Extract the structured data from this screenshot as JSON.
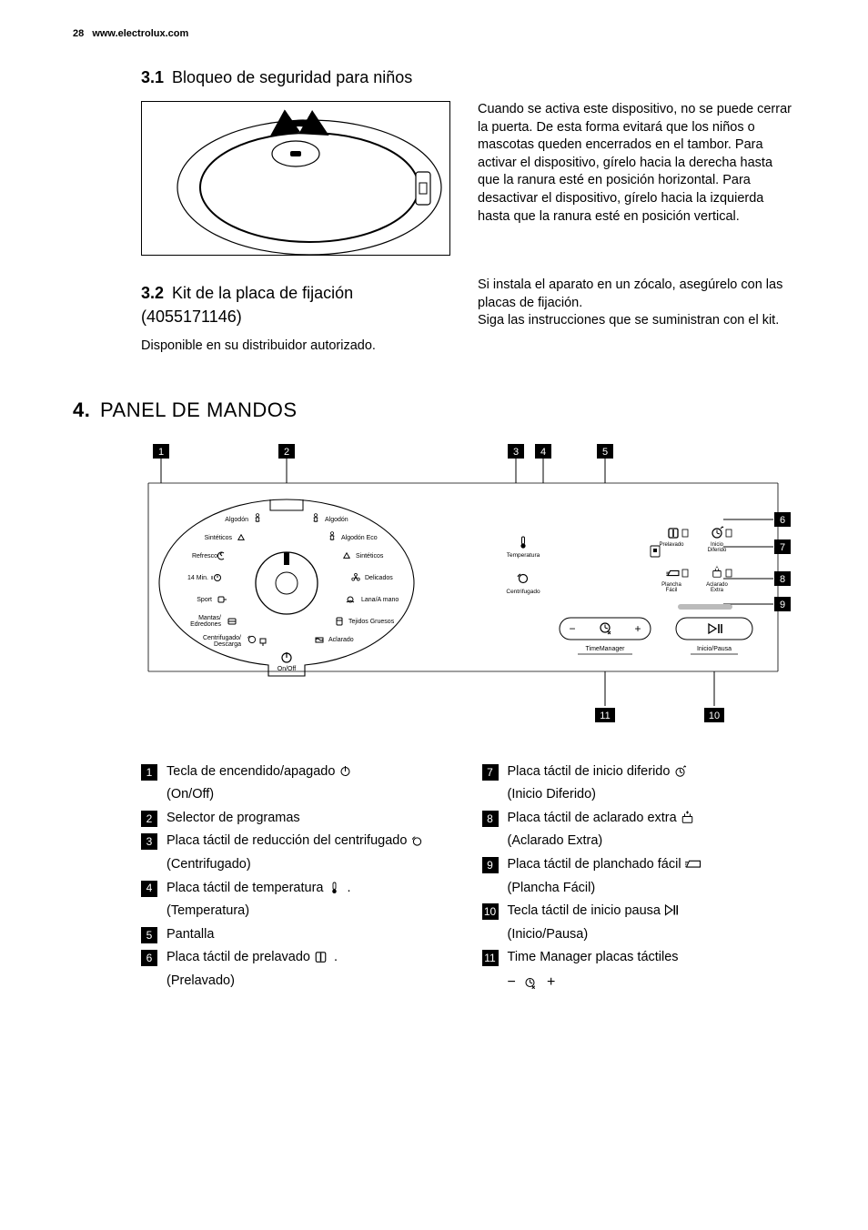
{
  "header": {
    "page_number": "28",
    "url": "www.electrolux.com"
  },
  "sec31": {
    "num": "3.1",
    "title": "Bloqueo de seguridad para niños",
    "body": "Cuando se activa este dispositivo, no se puede cerrar la puerta. De esta forma evitará que los niños o mascotas queden encerrados en el tambor. Para activar el dispositivo, gírelo hacia la derecha hasta que la ranura esté en posición horizontal. Para desactivar el dispositivo, gírelo hacia la izquierda hasta que la ranura esté en posición vertical."
  },
  "sec32": {
    "num": "3.2",
    "title_line1": "Kit de la placa de fijación",
    "title_line2": "(4055171146)",
    "distributor": "Disponible en su distribuidor autorizado.",
    "right1": "Si instala el aparato en un zócalo, asegúrelo con las placas de fijación.",
    "right2": "Siga las instrucciones que se suministran con el kit."
  },
  "sec4": {
    "num": "4.",
    "title": "PANEL DE MANDOS"
  },
  "panel": {
    "dial_left": [
      {
        "label": "Algodón",
        "icon": "cotton"
      },
      {
        "label": "Sintéticos",
        "icon": "triangle"
      },
      {
        "label": "Refresco",
        "icon": "refresh"
      },
      {
        "label": "14 Min.",
        "icon": "clock14"
      },
      {
        "label": "Sport",
        "icon": "sport"
      },
      {
        "label": "Mantas/\nEdredones",
        "icon": "blanket"
      },
      {
        "label": "Centrifugado/\nDescarga",
        "icon": "spin"
      }
    ],
    "dial_right": [
      {
        "label": "Algodón",
        "icon": "cotton"
      },
      {
        "label": "Algodón Eco",
        "icon": "cotton"
      },
      {
        "label": "Sintéticos",
        "icon": "triangle"
      },
      {
        "label": "Delicados",
        "icon": "flower"
      },
      {
        "label": "Lana/A mano",
        "icon": "wool"
      },
      {
        "label": "Tejidos Gruesos",
        "icon": "jeans"
      },
      {
        "label": "Aclarado",
        "icon": "rinse"
      }
    ],
    "onoff": "On/Off",
    "controls": {
      "temperatura": "Temperatura",
      "centrifugado": "Centrifugado",
      "prelavado": "Prelavado",
      "inicio_diferido": "Inicio\nDiferido",
      "plancha_facil": "Plancha\nFácil",
      "aclarado_extra": "Aclarado\nExtra",
      "time_manager": "TimeManager",
      "inicio_pausa": "Inicio/Pausa",
      "minus": "−",
      "plus": "+"
    },
    "callouts": [
      "1",
      "2",
      "3",
      "4",
      "5",
      "6",
      "7",
      "8",
      "9",
      "10",
      "11"
    ]
  },
  "legend": {
    "left": [
      {
        "n": "1",
        "text": "Tecla de encendido/apagado ",
        "icon": "power",
        "sub": "(On/Off)"
      },
      {
        "n": "2",
        "text": "Selector de programas"
      },
      {
        "n": "3",
        "text": "Placa táctil de reducción del centrifugado ",
        "icon": "spin",
        "sub": "(Centrifugado)"
      },
      {
        "n": "4",
        "text": "Placa táctil de temperatura ",
        "icon": "thermo",
        "tail": " .",
        "sub": "(Temperatura)"
      },
      {
        "n": "5",
        "text": "Pantalla"
      },
      {
        "n": "6",
        "text": "Placa táctil de prelavado ",
        "icon": "prewash",
        "tail": " .",
        "sub": "(Prelavado)"
      }
    ],
    "right": [
      {
        "n": "7",
        "text": "Placa táctil de inicio diferido ",
        "icon": "delay",
        "sub": "(Inicio Diferido)"
      },
      {
        "n": "8",
        "text": "Placa táctil de aclarado extra ",
        "icon": "extrarinse",
        "sub": "(Aclarado Extra)"
      },
      {
        "n": "9",
        "text": "Placa táctil de planchado fácil ",
        "icon": "iron",
        "sub": "(Plancha Fácil)"
      },
      {
        "n": "10",
        "text": "Tecla táctil de inicio pausa ",
        "icon": "playpause",
        "sub": "(Inicio/Pausa)"
      },
      {
        "n": "11",
        "text": "Time Manager placas táctiles",
        "subicons": true
      }
    ]
  },
  "colors": {
    "text": "#000000",
    "bg": "#ffffff",
    "badge_bg": "#000000",
    "badge_fg": "#ffffff",
    "line": "#000000"
  }
}
